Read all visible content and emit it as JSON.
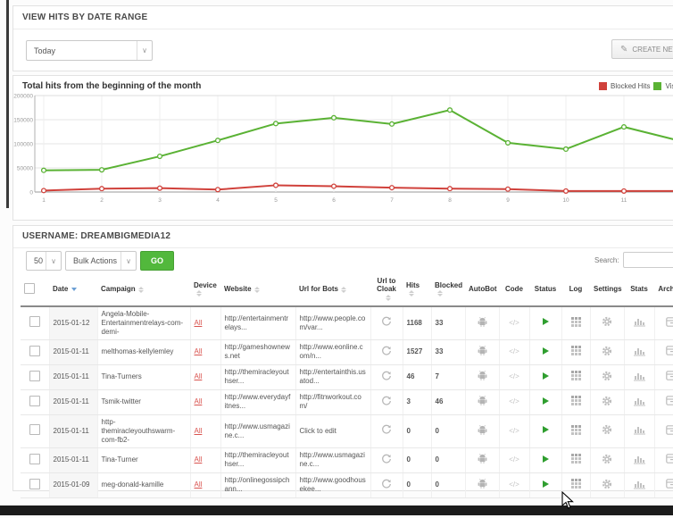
{
  "date_range_panel": {
    "title": "VIEW HITS BY DATE RANGE",
    "range_value": "Today",
    "create_button_label": "CREATE NEW CAMPAIGN"
  },
  "chart_data": {
    "type": "line",
    "title": "Total hits from the beginning of the month",
    "x": [
      1,
      2,
      3,
      4,
      5,
      6,
      7,
      8,
      9,
      10,
      11,
      12
    ],
    "series": [
      {
        "name": "Blocked Hits",
        "color": "#d0413b",
        "values": [
          3000,
          7000,
          8000,
          5000,
          14000,
          12000,
          9000,
          7000,
          6000,
          2000,
          2000,
          2000
        ]
      },
      {
        "name": "Vis",
        "color": "#5ab234",
        "values": [
          45000,
          46000,
          74000,
          107000,
          142000,
          154000,
          141000,
          170000,
          102000,
          89000,
          135000,
          105000
        ]
      }
    ],
    "ylim": [
      0,
      200000
    ],
    "yticks": [
      0,
      50000,
      100000,
      150000,
      200000
    ],
    "legend_position": "top-right",
    "grid": true
  },
  "chart_panel": {
    "legend": [
      {
        "label": "Blocked Hits"
      },
      {
        "label": "Vis"
      }
    ]
  },
  "table_panel": {
    "title": "USERNAME: DREAMBIGMEDIA12",
    "page_size": "50",
    "bulk_actions_label": "Bulk Actions",
    "go_label": "GO",
    "search_label": "Search:",
    "search_value": "",
    "columns": [
      "",
      "Date",
      "Campaign",
      "Device",
      "Website",
      "Url for Bots",
      "Url to Cloak",
      "Hits",
      "Blocked",
      "AutoBot",
      "Code",
      "Status",
      "Log",
      "Settings",
      "Stats",
      "Archive"
    ],
    "rows": [
      {
        "date": "2015-01-12",
        "campaign": "Angela-Mobile-Entertainmentrelays-com-demi-",
        "device": "All",
        "website": "http://entertainmentrelays...",
        "url_for_bots": "http://www.people.com/var...",
        "hits": "1168",
        "blocked": "33"
      },
      {
        "date": "2015-01-11",
        "campaign": "melthomas-kellylemley",
        "device": "All",
        "website": "http://gameshownews.net",
        "url_for_bots": "http://www.eonline.com/n...",
        "hits": "1527",
        "blocked": "33"
      },
      {
        "date": "2015-01-11",
        "campaign": "Tina-Turners",
        "device": "All",
        "website": "http://themiracleyouthser...",
        "url_for_bots": "http://entertainthis.usatod...",
        "hits": "46",
        "blocked": "7"
      },
      {
        "date": "2015-01-11",
        "campaign": "Tsmik-twitter",
        "device": "All",
        "website": "http://www.everydayfitnes...",
        "url_for_bots": "http://fitnworkout.com/",
        "hits": "3",
        "blocked": "46"
      },
      {
        "date": "2015-01-11",
        "campaign": "http-themiracleyouthswarm-com-fb2-",
        "device": "All",
        "website": "http://www.usmagazine.c...",
        "url_for_bots": "Click to edit",
        "hits": "0",
        "blocked": "0"
      },
      {
        "date": "2015-01-11",
        "campaign": "Tina-Turner",
        "device": "All",
        "website": "http://themiracleyouthser...",
        "url_for_bots": "http://www.usmagazine.c...",
        "hits": "0",
        "blocked": "0"
      },
      {
        "date": "2015-01-09",
        "campaign": "meg-donald-kamille",
        "device": "All",
        "website": "http://onlinegossipchann...",
        "url_for_bots": "http://www.goodhousekee...",
        "hits": "0",
        "blocked": "0"
      }
    ]
  }
}
